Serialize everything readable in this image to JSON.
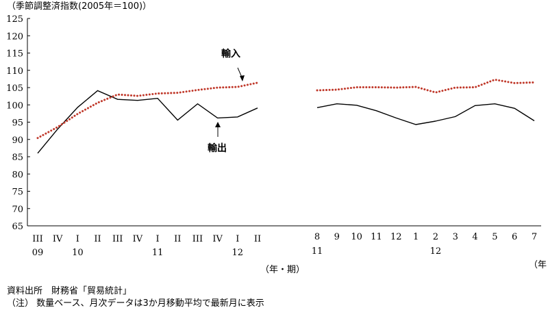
{
  "chart_data": {
    "type": "line",
    "ylabel": "（季節調整済指数(2005年＝100)）",
    "ylim": [
      65,
      125
    ],
    "yticks": [
      65,
      70,
      75,
      80,
      85,
      90,
      95,
      100,
      105,
      110,
      115,
      120,
      125
    ],
    "quarterly": {
      "axis_unit": "（年・期）",
      "x": [
        "III",
        "IV",
        "I",
        "II",
        "III",
        "IV",
        "I",
        "II",
        "III",
        "IV",
        "I",
        "II"
      ],
      "year_labels": [
        {
          "index": 0,
          "label": "09"
        },
        {
          "index": 2,
          "label": "10"
        },
        {
          "index": 6,
          "label": "11"
        },
        {
          "index": 10,
          "label": "12"
        }
      ],
      "series": [
        {
          "name": "輸出",
          "style": "solid",
          "color": "#000000",
          "values": [
            86.0,
            93.0,
            99.3,
            104.1,
            101.6,
            101.3,
            101.9,
            95.6,
            100.3,
            96.2,
            96.5,
            99.1
          ]
        },
        {
          "name": "輸入",
          "style": "dotted",
          "color": "#c0392b",
          "values": [
            90.4,
            93.6,
            97.4,
            100.6,
            103.0,
            102.6,
            103.3,
            103.5,
            104.3,
            105.0,
            105.2,
            106.4
          ]
        }
      ]
    },
    "monthly": {
      "axis_unit": "（年・",
      "x": [
        "8",
        "9",
        "10",
        "11",
        "12",
        "1",
        "2",
        "3",
        "4",
        "5",
        "6",
        "7"
      ],
      "year_labels": [
        {
          "index": 0,
          "label": "11"
        },
        {
          "index": 6,
          "label": "12"
        }
      ],
      "series": [
        {
          "name": "輸出",
          "style": "solid",
          "color": "#000000",
          "values": [
            99.2,
            100.3,
            99.9,
            98.3,
            96.2,
            94.3,
            95.3,
            96.6,
            99.8,
            100.3,
            99.0,
            95.4
          ]
        },
        {
          "name": "輸入",
          "style": "dotted",
          "color": "#c0392b",
          "values": [
            104.2,
            104.4,
            105.1,
            105.1,
            105.0,
            105.2,
            103.6,
            105.0,
            105.1,
            107.3,
            106.3,
            106.5
          ]
        }
      ]
    },
    "annotations": [
      {
        "text": "輸入",
        "series": "輸入"
      },
      {
        "text": "輸出",
        "series": "輸出"
      }
    ]
  },
  "notes": {
    "source": "資料出所　財務省「貿易統計」",
    "note": "（注） 数量ベース、月次データは3か月移動平均で最新月に表示"
  }
}
